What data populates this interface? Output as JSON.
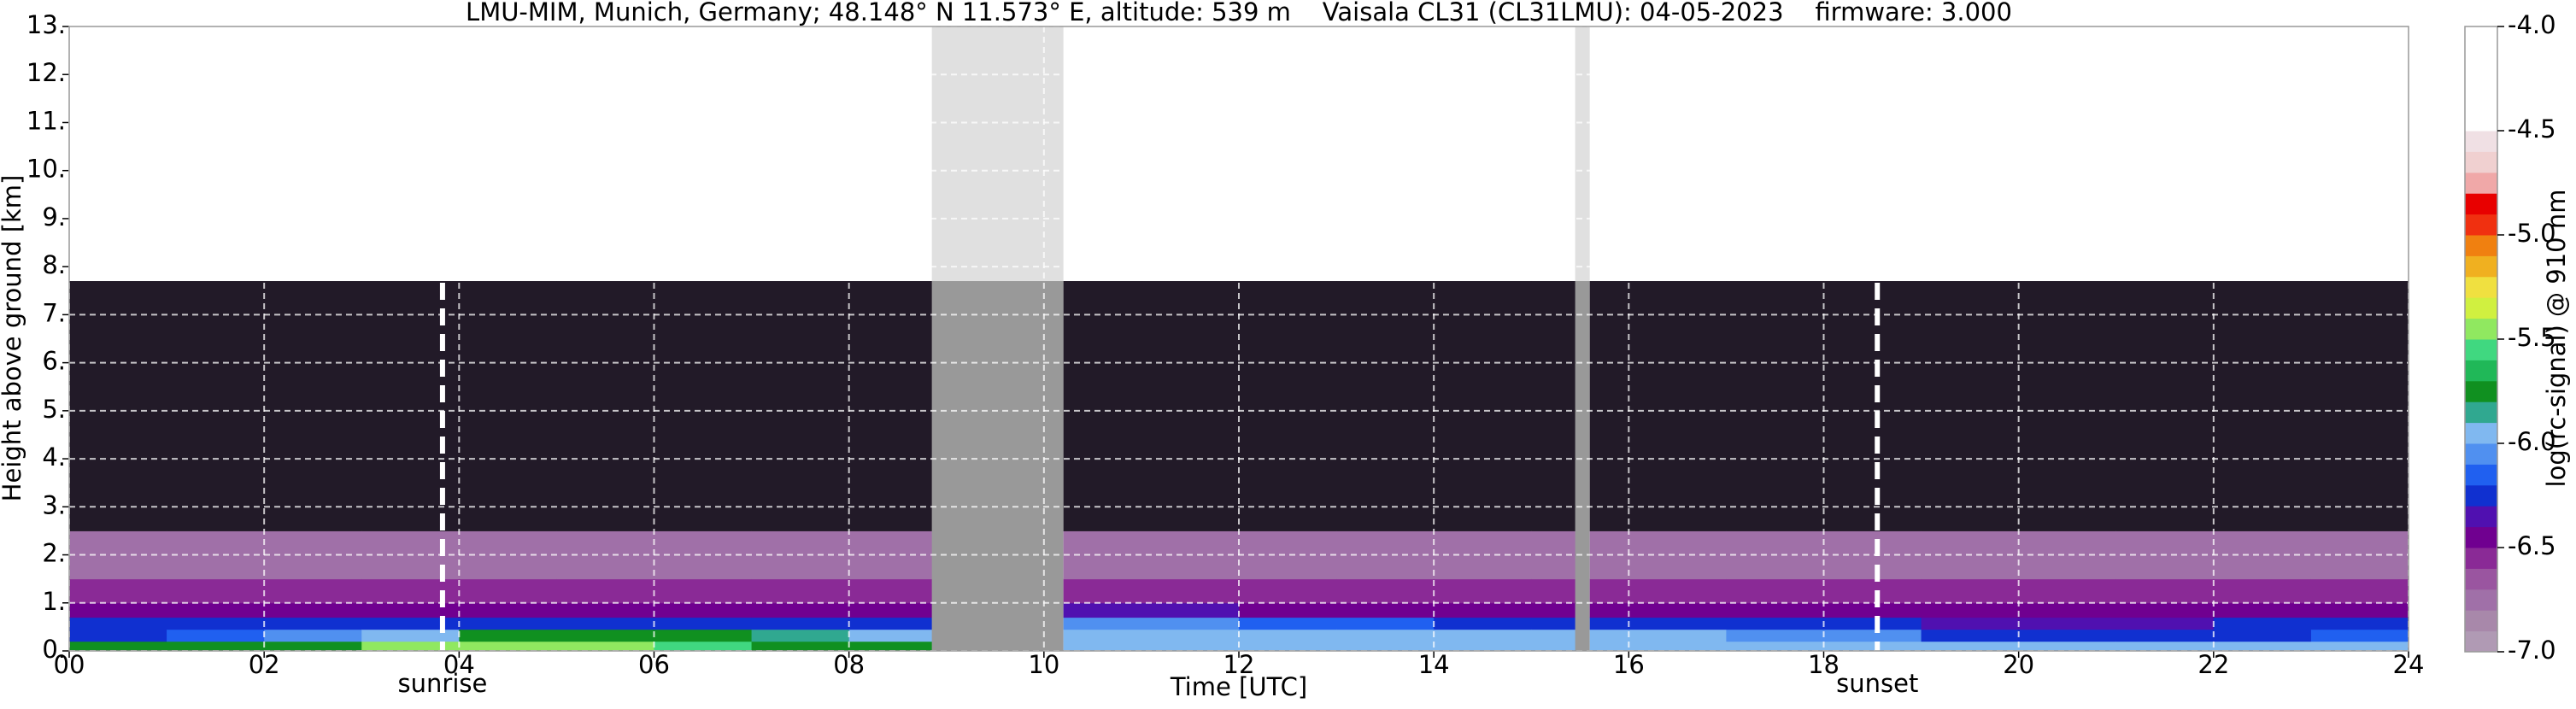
{
  "chart_data": {
    "type": "heatmap",
    "title": "LMU-MIM, Munich, Germany; 48.148° N 11.573° E, altitude: 539 m    Vaisala CL31 (CL31LMU): 04-05-2023    firmware: 3.000",
    "x_label": "Time [UTC]",
    "y_label": "Height above ground [km]",
    "colorbar_label": "log(rc-signal) @ 910 nm",
    "xlim": [
      0,
      24
    ],
    "ylim": [
      0,
      13
    ],
    "xticks": [
      {
        "value": 0,
        "label": "00"
      },
      {
        "value": 2,
        "label": "02"
      },
      {
        "value": 4,
        "label": "04"
      },
      {
        "value": 6,
        "label": "06"
      },
      {
        "value": 8,
        "label": "08"
      },
      10,
      12,
      14,
      16,
      18,
      20,
      22,
      24
    ],
    "yticks": [
      {
        "value": 0,
        "label": "0."
      },
      {
        "value": 1,
        "label": "1."
      },
      {
        "value": 2,
        "label": "2."
      },
      {
        "value": 3,
        "label": "3."
      },
      {
        "value": 4,
        "label": "4."
      },
      {
        "value": 5,
        "label": "5."
      },
      {
        "value": 6,
        "label": "6."
      },
      {
        "value": 7,
        "label": "7."
      },
      {
        "value": 8,
        "label": "8."
      },
      {
        "value": 9,
        "label": "9."
      },
      {
        "value": 10,
        "label": "10."
      },
      {
        "value": 11,
        "label": "11."
      },
      {
        "value": 12,
        "label": "12."
      },
      {
        "value": 13,
        "label": "13."
      }
    ],
    "grid": true,
    "x_edges": [
      0,
      1,
      2,
      3,
      4,
      5,
      6,
      7,
      8,
      8.85,
      10.2,
      11,
      12,
      13,
      14,
      15,
      15.45,
      15.6,
      16,
      17,
      18,
      19,
      20,
      21,
      22,
      23,
      24
    ],
    "y_edges": [
      0,
      0.2,
      0.45,
      0.7,
      1.0,
      1.5,
      2.5,
      4,
      7.7
    ],
    "z": [
      [
        -5.8,
        -5.8,
        -5.7,
        -5.5,
        -5.4,
        -5.5,
        -5.6,
        -5.7,
        -5.8,
        null,
        -5.9,
        -5.9,
        -5.9,
        -5.9,
        -5.9,
        -5.9,
        null,
        -5.9,
        -5.9,
        -5.9,
        -5.95,
        -6.0,
        -6.0,
        -6.0,
        -6.0,
        -6.0
      ],
      [
        -6.2,
        -6.15,
        -6.1,
        -5.9,
        -5.8,
        -5.8,
        -5.8,
        -5.85,
        -5.9,
        null,
        -6.0,
        -6.0,
        -6.0,
        -6.0,
        -6.0,
        -6.0,
        null,
        -6.0,
        -6.0,
        -6.05,
        -6.1,
        -6.3,
        -6.3,
        -6.25,
        -6.2,
        -6.15
      ],
      [
        -6.3,
        -6.3,
        -6.3,
        -6.3,
        -6.3,
        -6.3,
        -6.2,
        -6.2,
        -6.2,
        null,
        -6.05,
        -6.1,
        -6.15,
        -6.15,
        -6.2,
        -6.2,
        null,
        -6.2,
        -6.2,
        -6.25,
        -6.3,
        -6.35,
        -6.35,
        -6.35,
        -6.3,
        -6.3
      ],
      [
        -6.45,
        -6.45,
        -6.45,
        -6.45,
        -6.45,
        -6.45,
        -6.4,
        -6.4,
        -6.4,
        null,
        -6.35,
        -6.35,
        -6.4,
        -6.4,
        -6.4,
        -6.4,
        null,
        -6.4,
        -6.4,
        -6.4,
        -6.45,
        -6.45,
        -6.45,
        -6.45,
        -6.45,
        -6.45
      ],
      [
        -6.6,
        -6.6,
        -6.6,
        -6.6,
        -6.6,
        -6.6,
        -6.6,
        -6.6,
        -6.6,
        null,
        -6.55,
        -6.6,
        -6.6,
        -6.6,
        -6.6,
        -6.6,
        null,
        -6.6,
        -6.6,
        -6.6,
        -6.6,
        -6.6,
        -6.6,
        -6.6,
        -6.6,
        -6.6
      ],
      [
        -6.8,
        -6.8,
        -6.8,
        -6.8,
        -6.8,
        -6.8,
        -6.8,
        -6.8,
        -6.8,
        null,
        -6.8,
        -6.8,
        -6.8,
        -6.8,
        -6.8,
        -6.8,
        null,
        -6.8,
        -6.8,
        -6.8,
        -6.8,
        -6.8,
        -6.8,
        -6.8,
        -6.8,
        -6.8
      ],
      [
        -7.05,
        -7.05,
        -7.05,
        -7.05,
        -7.05,
        -7.05,
        -7.05,
        -7.05,
        -7.05,
        null,
        -7.05,
        -7.05,
        -7.05,
        -7.05,
        -7.05,
        -7.05,
        null,
        -7.05,
        -7.05,
        -7.05,
        -7.05,
        -7.05,
        -7.05,
        -7.05,
        -7.05,
        -7.05
      ],
      [
        -7.3,
        -7.3,
        -7.3,
        -7.3,
        -7.3,
        -7.3,
        -7.3,
        -7.3,
        -7.3,
        null,
        -7.3,
        -7.3,
        -7.3,
        -7.3,
        -7.3,
        -7.3,
        null,
        -7.3,
        -7.3,
        -7.3,
        -7.3,
        -7.3,
        -7.3,
        -7.3,
        -7.3,
        -7.3
      ]
    ],
    "clim": [
      -7,
      -4
    ],
    "cticks": [
      {
        "value": -4,
        "label": "-4.0"
      },
      -4.5,
      {
        "value": -5,
        "label": "-5.0"
      },
      -5.5,
      {
        "value": -6,
        "label": "-6.0"
      },
      -6.5,
      {
        "value": -7,
        "label": "-7.0"
      }
    ],
    "colors": [
      "#b09ab4",
      "#a888aa",
      "#a070a8",
      "#9a55a0",
      "#8a2a96",
      "#700090",
      "#5010b0",
      "#1030d0",
      "#2060f0",
      "#5090f0",
      "#80b8f0",
      "#30a890",
      "#109020",
      "#20b858",
      "#40d880",
      "#90e860",
      "#d0f040",
      "#f0e040",
      "#f0b020",
      "#f08010",
      "#f03010",
      "#e80000",
      "#f0a8a8",
      "#f0d0d0",
      "#f0e0e4",
      "#ffffff",
      "#ffffff",
      "#ffffff",
      "#ffffff",
      "#ffffff"
    ],
    "under_color": "#221a28",
    "gap_color": "#999999",
    "gap_above_color": "#e0e0e0",
    "annotations": [
      {
        "text": "sunrise",
        "x": 3.83
      },
      {
        "text": "sunset",
        "x": 18.55
      }
    ]
  }
}
